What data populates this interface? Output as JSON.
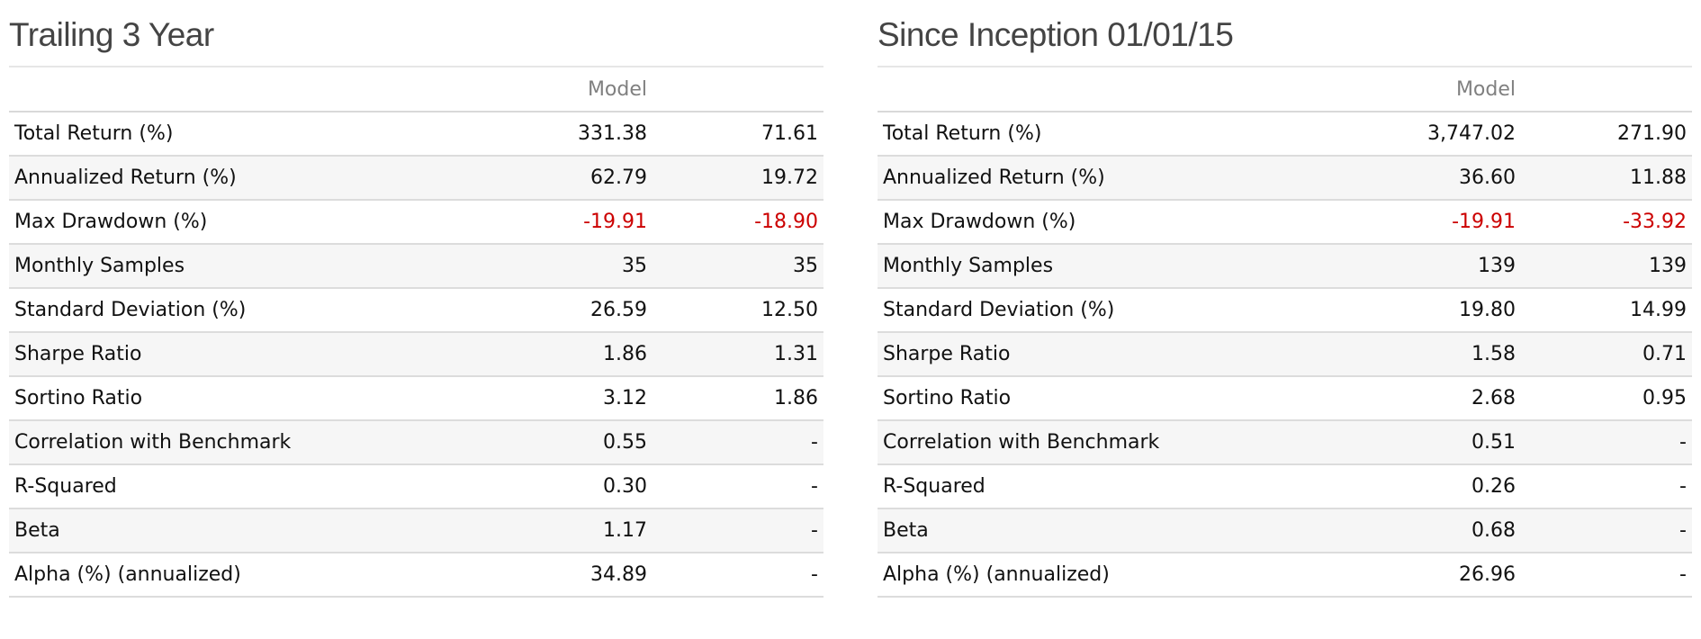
{
  "colors": {
    "negative": "#cc0000",
    "title": "#444444",
    "header": "#808080",
    "row_alt": "#f6f6f6"
  },
  "panels": [
    {
      "title": "Trailing 3 Year",
      "columns": [
        "",
        "Model",
        ""
      ],
      "rows": [
        {
          "label": "Total Return (%)",
          "model": "331.38",
          "bench": "71.61"
        },
        {
          "label": "Annualized Return (%)",
          "model": "62.79",
          "bench": "19.72"
        },
        {
          "label": "Max Drawdown (%)",
          "model": "-19.91",
          "bench": "-18.90",
          "negative": true
        },
        {
          "label": "Monthly Samples",
          "model": "35",
          "bench": "35"
        },
        {
          "label": "Standard Deviation (%)",
          "model": "26.59",
          "bench": "12.50"
        },
        {
          "label": "Sharpe Ratio",
          "model": "1.86",
          "bench": "1.31"
        },
        {
          "label": "Sortino Ratio",
          "model": "3.12",
          "bench": "1.86"
        },
        {
          "label": "Correlation with Benchmark",
          "model": "0.55",
          "bench": "-"
        },
        {
          "label": "R-Squared",
          "model": "0.30",
          "bench": "-"
        },
        {
          "label": "Beta",
          "model": "1.17",
          "bench": "-"
        },
        {
          "label": "Alpha (%) (annualized)",
          "model": "34.89",
          "bench": "-"
        }
      ]
    },
    {
      "title": "Since Inception 01/01/15",
      "columns": [
        "",
        "Model",
        ""
      ],
      "rows": [
        {
          "label": "Total Return (%)",
          "model": "3,747.02",
          "bench": "271.90"
        },
        {
          "label": "Annualized Return (%)",
          "model": "36.60",
          "bench": "11.88"
        },
        {
          "label": "Max Drawdown (%)",
          "model": "-19.91",
          "bench": "-33.92",
          "negative": true
        },
        {
          "label": "Monthly Samples",
          "model": "139",
          "bench": "139"
        },
        {
          "label": "Standard Deviation (%)",
          "model": "19.80",
          "bench": "14.99"
        },
        {
          "label": "Sharpe Ratio",
          "model": "1.58",
          "bench": "0.71"
        },
        {
          "label": "Sortino Ratio",
          "model": "2.68",
          "bench": "0.95"
        },
        {
          "label": "Correlation with Benchmark",
          "model": "0.51",
          "bench": "-"
        },
        {
          "label": "R-Squared",
          "model": "0.26",
          "bench": "-"
        },
        {
          "label": "Beta",
          "model": "0.68",
          "bench": "-"
        },
        {
          "label": "Alpha (%) (annualized)",
          "model": "26.96",
          "bench": "-"
        }
      ]
    }
  ]
}
